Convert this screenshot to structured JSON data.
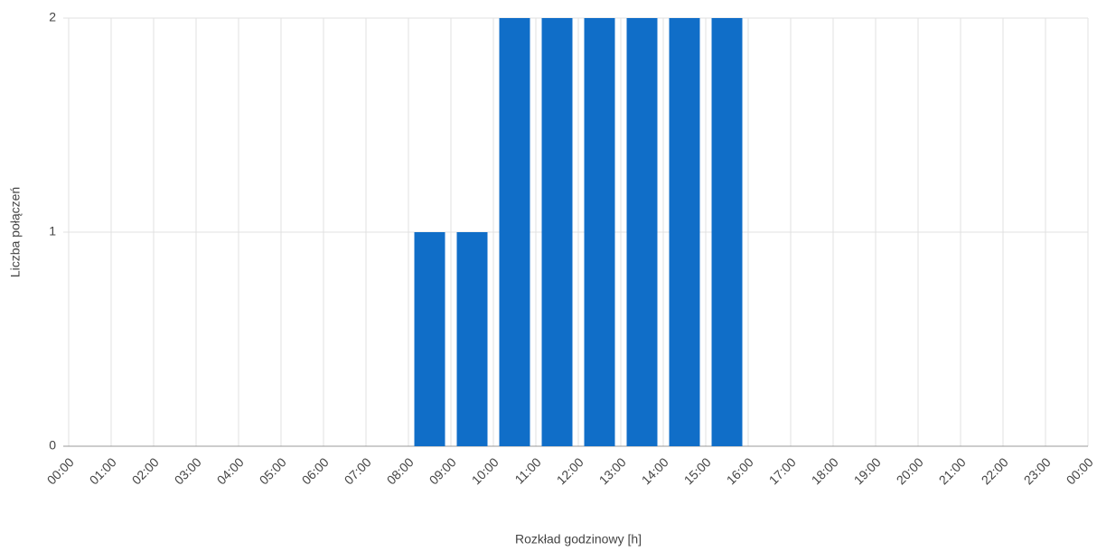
{
  "chart_data": {
    "type": "histogram",
    "x_label": "Rozkład godzinowy [h]",
    "y_label": "Liczba połączeń",
    "bins": [
      "00:00",
      "01:00",
      "02:00",
      "03:00",
      "04:00",
      "05:00",
      "06:00",
      "07:00",
      "08:00",
      "09:00",
      "10:00",
      "11:00",
      "12:00",
      "13:00",
      "14:00",
      "15:00",
      "16:00",
      "17:00",
      "18:00",
      "19:00",
      "20:00",
      "21:00",
      "22:00",
      "23:00",
      "00:00"
    ],
    "values": [
      0,
      0,
      0,
      0,
      0,
      0,
      0,
      0,
      1,
      1,
      2,
      2,
      2,
      2,
      2,
      2,
      0,
      0,
      0,
      0,
      0,
      0,
      0,
      0
    ],
    "color": "#106ec8",
    "ylim": [
      0,
      2
    ],
    "yticks": [
      0,
      1,
      2
    ],
    "grid": true
  }
}
